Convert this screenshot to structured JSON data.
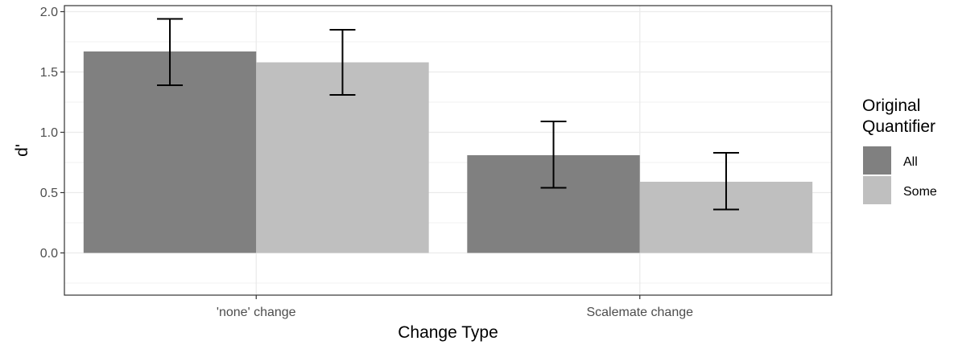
{
  "chart_data": {
    "type": "bar",
    "categories": [
      "'none' change",
      "Scalemate change"
    ],
    "series": [
      {
        "name": "All",
        "color": "#808080",
        "values": [
          1.67,
          0.81
        ],
        "error_low": [
          1.39,
          0.54
        ],
        "error_high": [
          1.94,
          1.09
        ]
      },
      {
        "name": "Some",
        "color": "#bfbfbf",
        "values": [
          1.58,
          0.59
        ],
        "error_low": [
          1.31,
          0.36
        ],
        "error_high": [
          1.85,
          0.83
        ]
      }
    ],
    "xlabel": "Change Type",
    "ylabel": "d'",
    "ylim": [
      -0.35,
      2.05
    ],
    "yticks": [
      "0.0",
      "0.5",
      "1.0",
      "1.5",
      "2.0"
    ],
    "legend": {
      "title_lines": [
        "Original",
        "Quantifier"
      ],
      "placement": "right"
    },
    "grid": true,
    "theme": "bw"
  }
}
